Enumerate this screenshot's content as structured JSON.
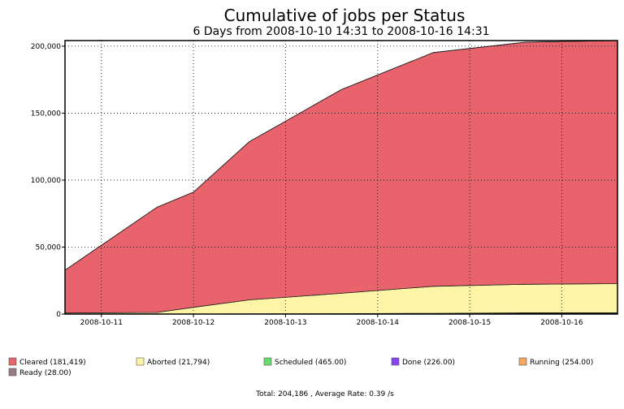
{
  "chart_data": {
    "type": "area",
    "title": "Cumulative of jobs per Status",
    "subtitle": "6 Days from 2008-10-10 14:31 to 2008-10-16 14:31",
    "xlabel": "",
    "ylabel": "",
    "x_range": [
      "2008-10-10 14:31",
      "2008-10-16 14:31"
    ],
    "ylim": [
      0,
      204186
    ],
    "grid": true,
    "legend_position": "bottom",
    "x_ticks": [
      "2008-10-11",
      "2008-10-12",
      "2008-10-13",
      "2008-10-14",
      "2008-10-15",
      "2008-10-16"
    ],
    "y_ticks": [
      "0",
      "50,000",
      "100,000",
      "150,000",
      "200,000"
    ],
    "y_tick_values": [
      0,
      50000,
      100000,
      150000,
      200000
    ],
    "x": [
      "2008-10-10 14:31",
      "2008-10-11 14:31",
      "2008-10-12 00:00",
      "2008-10-12 14:31",
      "2008-10-13 14:31",
      "2008-10-14 14:31",
      "2008-10-15 14:31",
      "2008-10-16 14:31"
    ],
    "series": [
      {
        "name": "Running",
        "color": "#f4a85c",
        "values": [
          0,
          0,
          0,
          50,
          120,
          200,
          254,
          254
        ]
      },
      {
        "name": "Done",
        "color": "#8844ee",
        "values": [
          0,
          0,
          0,
          40,
          100,
          180,
          226,
          226
        ]
      },
      {
        "name": "Scheduled",
        "color": "#66dd66",
        "values": [
          0,
          0,
          0,
          30,
          80,
          150,
          465,
          465
        ]
      },
      {
        "name": "Aborted",
        "color": "#fdf5a6",
        "values": [
          800,
          1200,
          5000,
          10500,
          15200,
          20200,
          21300,
          21794
        ]
      },
      {
        "name": "Cleared",
        "color": "#e8636b",
        "values": [
          32000,
          78600,
          86000,
          118000,
          152000,
          174500,
          180700,
          181419
        ]
      },
      {
        "name": "Ready",
        "color": "#9a7b82",
        "values": [
          0,
          0,
          0,
          0,
          5,
          10,
          28,
          28
        ]
      }
    ],
    "legend": [
      {
        "label": "Cleared (181,419)",
        "color": "#e8636b"
      },
      {
        "label": "Aborted (21,794)",
        "color": "#fdf5a6"
      },
      {
        "label": "Scheduled (465.00)",
        "color": "#66dd66"
      },
      {
        "label": "Done (226.00)",
        "color": "#8844ee"
      },
      {
        "label": "Running (254.00)",
        "color": "#f4a85c"
      },
      {
        "label": "Ready (28.00)",
        "color": "#9a7b82"
      }
    ],
    "footer": "Total: 204,186 , Average Rate: 0.39 /s"
  }
}
